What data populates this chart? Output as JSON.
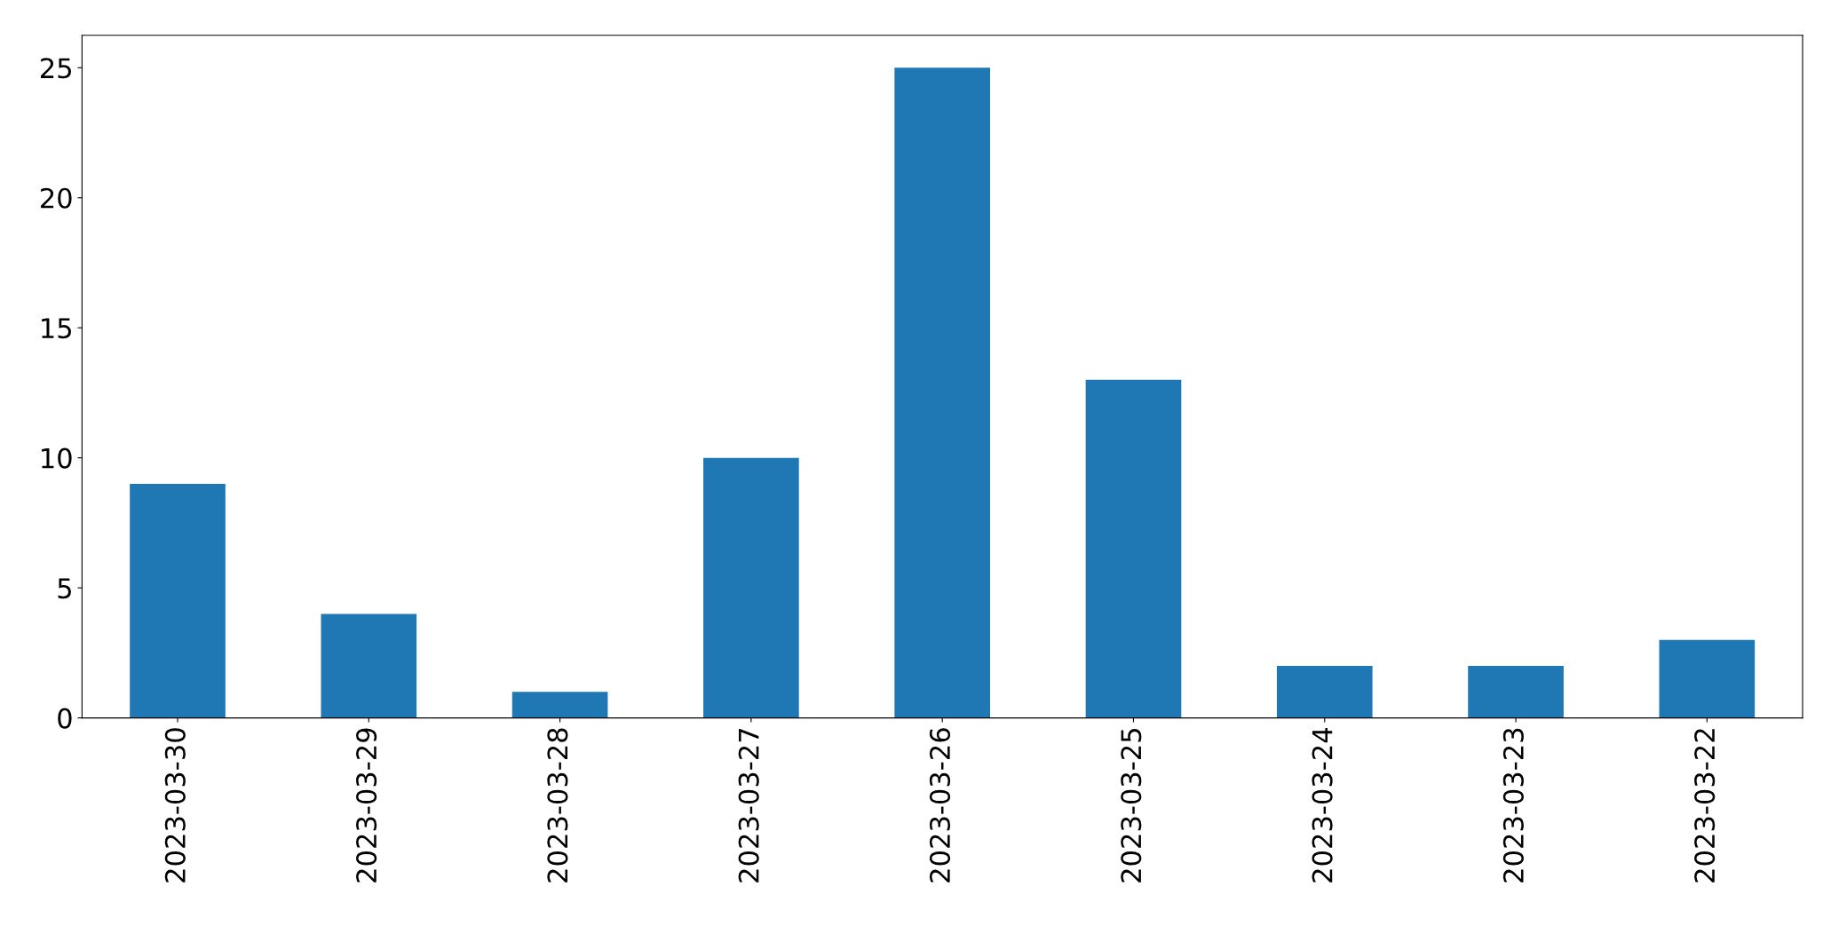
{
  "chart_data": {
    "type": "bar",
    "categories": [
      "2023-03-30",
      "2023-03-29",
      "2023-03-28",
      "2023-03-27",
      "2023-03-26",
      "2023-03-25",
      "2023-03-24",
      "2023-03-23",
      "2023-03-22"
    ],
    "values": [
      9,
      4,
      1,
      10,
      25,
      13,
      2,
      2,
      3
    ],
    "color": "#1f77b4",
    "ylim": [
      0,
      26.25
    ],
    "yticks": [
      0,
      5,
      10,
      15,
      20,
      25
    ],
    "grid": false,
    "legend": false
  }
}
